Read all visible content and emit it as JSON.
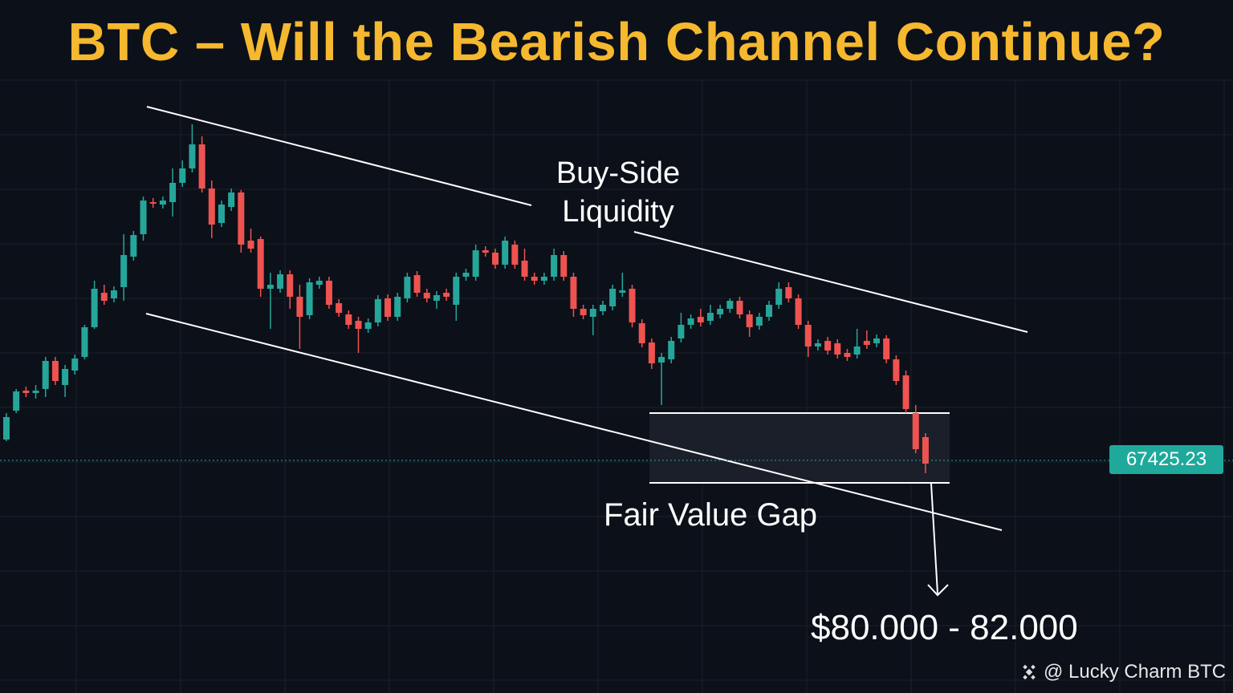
{
  "chart_data": {
    "type": "candlestick",
    "title": "BTC – Will the Bearish Channel Continue?",
    "annotations": {
      "liquidity": "Buy-Side Liquidity",
      "gap": "Fair Value Gap",
      "target": "$80.000 - 82.000"
    },
    "last_price": 67425.23,
    "watermark": "@ Lucky Charm BTC",
    "up_color": "#26a69a",
    "down_color": "#ef5350",
    "ylim": [
      0,
      864
    ],
    "candles": [
      [
        316,
        349,
        314,
        344
      ],
      [
        352,
        379,
        349,
        376
      ],
      [
        377,
        382,
        369,
        374
      ],
      [
        374,
        384,
        367,
        377
      ],
      [
        379,
        419,
        369,
        414
      ],
      [
        414,
        419,
        384,
        389
      ],
      [
        384,
        409,
        369,
        404
      ],
      [
        402,
        422,
        397,
        417
      ],
      [
        419,
        459,
        416,
        456
      ],
      [
        456,
        514,
        454,
        504
      ],
      [
        499,
        509,
        484,
        489
      ],
      [
        492,
        507,
        487,
        502
      ],
      [
        506,
        572,
        489,
        546
      ],
      [
        544,
        576,
        539,
        571
      ],
      [
        572,
        619,
        564,
        614
      ],
      [
        612,
        617,
        605,
        610
      ],
      [
        609,
        619,
        604,
        614
      ],
      [
        612,
        654,
        594,
        636
      ],
      [
        636,
        664,
        631,
        654
      ],
      [
        654,
        709,
        649,
        684
      ],
      [
        684,
        694,
        624,
        629
      ],
      [
        629,
        639,
        567,
        584
      ],
      [
        586,
        614,
        581,
        609
      ],
      [
        606,
        629,
        601,
        624
      ],
      [
        624,
        627,
        549,
        559
      ],
      [
        564,
        579,
        549,
        554
      ],
      [
        566,
        569,
        494,
        504
      ],
      [
        504,
        524,
        454,
        509
      ],
      [
        504,
        527,
        499,
        522
      ],
      [
        522,
        527,
        479,
        494
      ],
      [
        494,
        509,
        429,
        469
      ],
      [
        471,
        517,
        466,
        512
      ],
      [
        509,
        519,
        504,
        514
      ],
      [
        514,
        519,
        479,
        484
      ],
      [
        486,
        491,
        469,
        474
      ],
      [
        472,
        477,
        454,
        459
      ],
      [
        464,
        469,
        424,
        454
      ],
      [
        454,
        467,
        449,
        462
      ],
      [
        462,
        496,
        457,
        491
      ],
      [
        492,
        497,
        464,
        469
      ],
      [
        469,
        499,
        464,
        494
      ],
      [
        492,
        524,
        487,
        519
      ],
      [
        521,
        526,
        494,
        499
      ],
      [
        499,
        504,
        487,
        492
      ],
      [
        489,
        501,
        479,
        496
      ],
      [
        499,
        504,
        489,
        494
      ],
      [
        484,
        524,
        464,
        519
      ],
      [
        519,
        529,
        514,
        524
      ],
      [
        519,
        559,
        514,
        552
      ],
      [
        552,
        557,
        544,
        549
      ],
      [
        549,
        554,
        529,
        534
      ],
      [
        534,
        569,
        529,
        564
      ],
      [
        559,
        564,
        529,
        534
      ],
      [
        539,
        554,
        514,
        519
      ],
      [
        519,
        524,
        509,
        514
      ],
      [
        514,
        524,
        509,
        519
      ],
      [
        519,
        554,
        514,
        546
      ],
      [
        546,
        551,
        514,
        519
      ],
      [
        519,
        524,
        469,
        479
      ],
      [
        479,
        484,
        466,
        471
      ],
      [
        469,
        484,
        446,
        479
      ],
      [
        476,
        489,
        471,
        484
      ],
      [
        482,
        509,
        477,
        504
      ],
      [
        499,
        524,
        494,
        502
      ],
      [
        504,
        509,
        456,
        462
      ],
      [
        461,
        466,
        431,
        436
      ],
      [
        437,
        442,
        404,
        411
      ],
      [
        412,
        424,
        359,
        419
      ],
      [
        416,
        444,
        411,
        439
      ],
      [
        442,
        474,
        437,
        459
      ],
      [
        459,
        472,
        454,
        467
      ],
      [
        469,
        479,
        457,
        462
      ],
      [
        464,
        484,
        459,
        474
      ],
      [
        472,
        484,
        467,
        479
      ],
      [
        479,
        492,
        474,
        489
      ],
      [
        489,
        494,
        467,
        472
      ],
      [
        472,
        477,
        444,
        456
      ],
      [
        458,
        474,
        453,
        469
      ],
      [
        469,
        489,
        464,
        484
      ],
      [
        484,
        512,
        479,
        504
      ],
      [
        506,
        512,
        487,
        492
      ],
      [
        492,
        497,
        454,
        459
      ],
      [
        459,
        464,
        419,
        432
      ],
      [
        432,
        441,
        427,
        436
      ],
      [
        439,
        444,
        422,
        427
      ],
      [
        436,
        441,
        417,
        422
      ],
      [
        424,
        429,
        414,
        419
      ],
      [
        422,
        454,
        417,
        432
      ],
      [
        439,
        452,
        429,
        434
      ],
      [
        436,
        447,
        431,
        442
      ],
      [
        442,
        446,
        411,
        416
      ],
      [
        416,
        421,
        384,
        389
      ],
      [
        396,
        402,
        349,
        354
      ],
      [
        349,
        359,
        299,
        304
      ],
      [
        319,
        324,
        274,
        286
      ]
    ]
  }
}
